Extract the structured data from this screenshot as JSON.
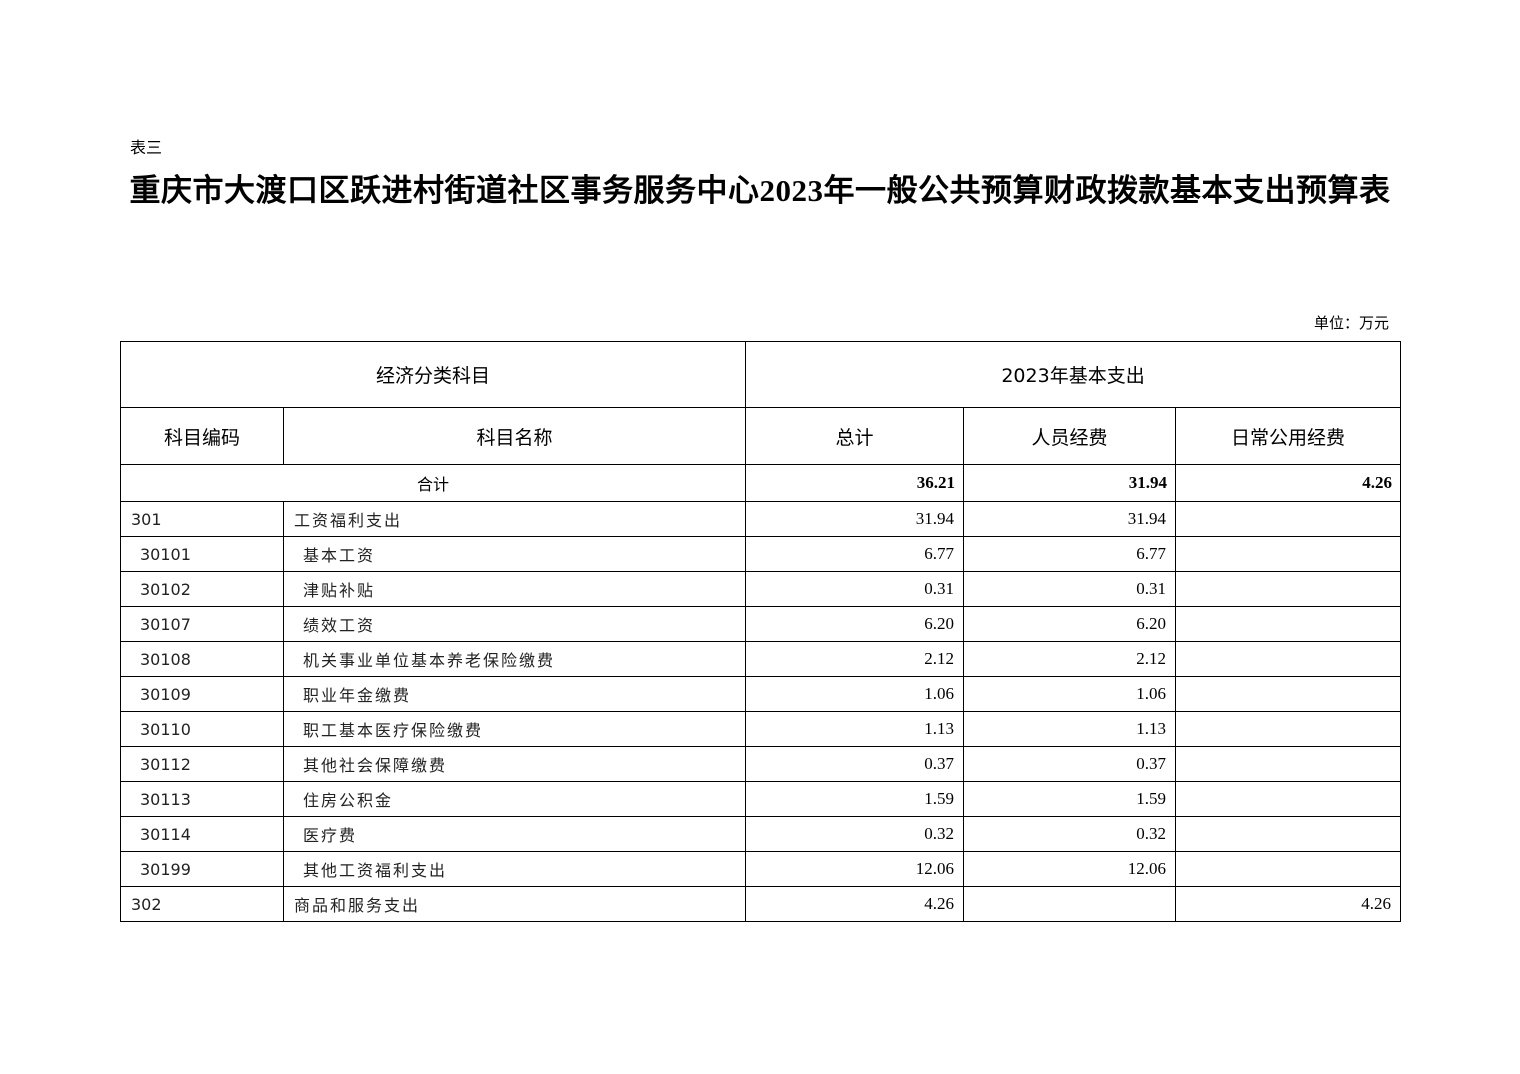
{
  "doc": {
    "label": "表三",
    "title": "重庆市大渡口区跃进村街道社区事务服务中心2023年一般公共预算财政拨款基本支出预算表",
    "unit": "单位：万元"
  },
  "table": {
    "header_group_left": "经济分类科目",
    "header_group_right": "2023年基本支出",
    "columns": [
      "科目编码",
      "科目名称",
      "总计",
      "人员经费",
      "日常公用经费"
    ],
    "total": {
      "label": "合计",
      "total": "36.21",
      "personnel": "31.94",
      "public": "4.26"
    },
    "rows": [
      {
        "code": "301",
        "name": "工资福利支出",
        "total": "31.94",
        "personnel": "31.94",
        "public": ""
      },
      {
        "code": "30101",
        "name": "基本工资",
        "total": "6.77",
        "personnel": "6.77",
        "public": ""
      },
      {
        "code": "30102",
        "name": "津贴补贴",
        "total": "0.31",
        "personnel": "0.31",
        "public": ""
      },
      {
        "code": "30107",
        "name": "绩效工资",
        "total": "6.20",
        "personnel": "6.20",
        "public": ""
      },
      {
        "code": "30108",
        "name": "机关事业单位基本养老保险缴费",
        "total": "2.12",
        "personnel": "2.12",
        "public": ""
      },
      {
        "code": "30109",
        "name": "职业年金缴费",
        "total": "1.06",
        "personnel": "1.06",
        "public": ""
      },
      {
        "code": "30110",
        "name": "职工基本医疗保险缴费",
        "total": "1.13",
        "personnel": "1.13",
        "public": ""
      },
      {
        "code": "30112",
        "name": "其他社会保障缴费",
        "total": "0.37",
        "personnel": "0.37",
        "public": ""
      },
      {
        "code": "30113",
        "name": "住房公积金",
        "total": "1.59",
        "personnel": "1.59",
        "public": ""
      },
      {
        "code": "30114",
        "name": "医疗费",
        "total": "0.32",
        "personnel": "0.32",
        "public": ""
      },
      {
        "code": "30199",
        "name": "其他工资福利支出",
        "total": "12.06",
        "personnel": "12.06",
        "public": ""
      },
      {
        "code": "302",
        "name": "商品和服务支出",
        "total": "4.26",
        "personnel": "",
        "public": "4.26"
      }
    ]
  }
}
